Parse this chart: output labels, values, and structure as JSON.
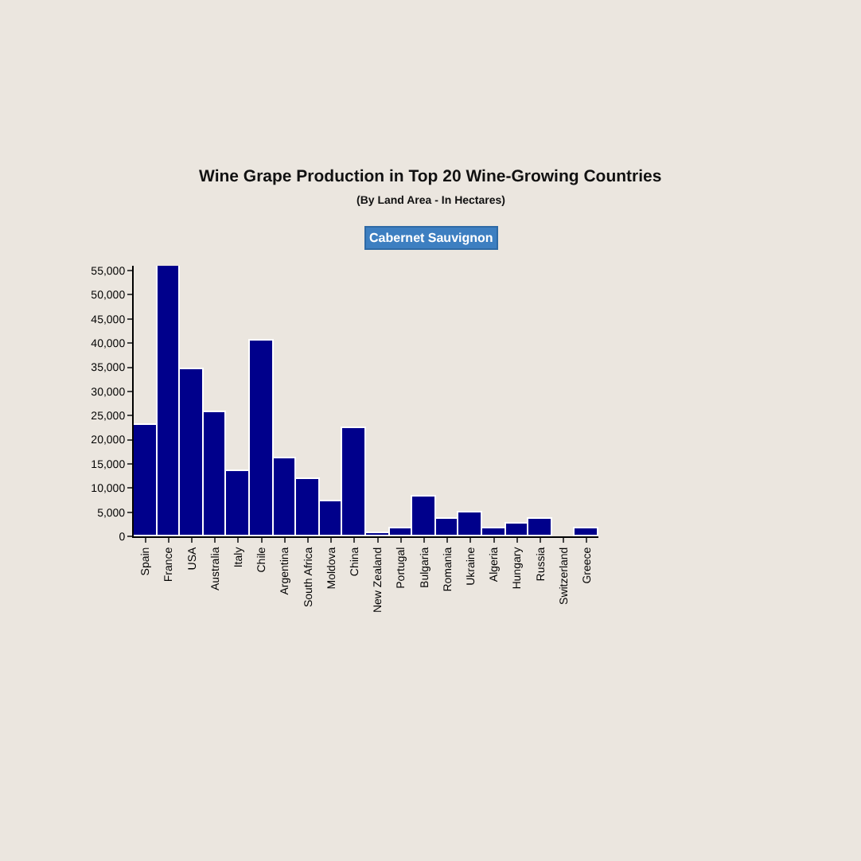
{
  "chart_data": {
    "type": "bar",
    "title": "Wine Grape Production in Top 20 Wine-Growing Countries",
    "subtitle": "(By Land Area - In Hectares)",
    "annotations": [
      "Cabernet Sauvignon"
    ],
    "categories": [
      "Spain",
      "France",
      "USA",
      "Australia",
      "Italy",
      "Chile",
      "Argentina",
      "South Africa",
      "Moldova",
      "China",
      "New Zealand",
      "Portugal",
      "Bulgaria",
      "Romania",
      "Ukraine",
      "Algeria",
      "Hungary",
      "Russia",
      "Switzerland",
      "Greece"
    ],
    "values": [
      23000,
      56000,
      34600,
      25600,
      13500,
      40400,
      16000,
      12000,
      7400,
      22300,
      500,
      1500,
      8400,
      3600,
      4800,
      1500,
      2800,
      3600,
      0,
      1500
    ],
    "color": "#00008b",
    "ylim": [
      0,
      56000
    ],
    "yticks": [
      {
        "value": 0,
        "label": "0"
      },
      {
        "value": 5000,
        "label": "5,000"
      },
      {
        "value": 10000,
        "label": "10,000"
      },
      {
        "value": 15000,
        "label": "15,000"
      },
      {
        "value": 20000,
        "label": "20,000"
      },
      {
        "value": 25000,
        "label": "25,000"
      },
      {
        "value": 30000,
        "label": "30,000"
      },
      {
        "value": 35000,
        "label": "35,000"
      },
      {
        "value": 40000,
        "label": "40,000"
      },
      {
        "value": 45000,
        "label": "45,000"
      },
      {
        "value": 50000,
        "label": "50,000"
      },
      {
        "value": 55000,
        "label": "55,000"
      }
    ],
    "grid": false
  }
}
